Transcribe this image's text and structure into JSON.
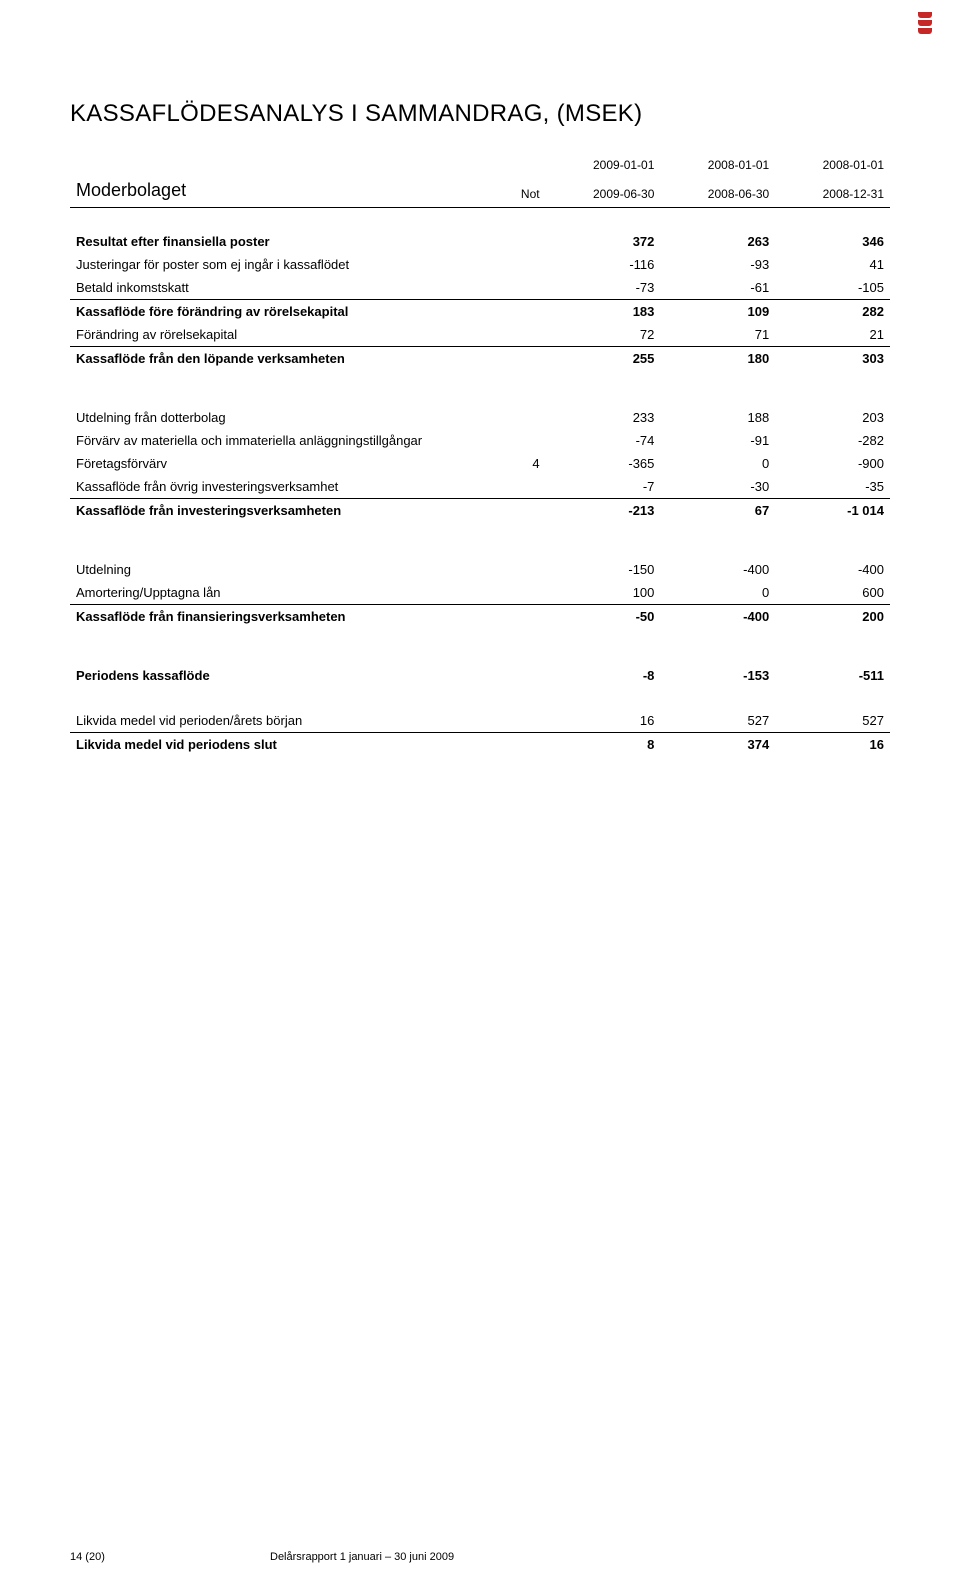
{
  "cornerMark": {
    "color": "#c62828"
  },
  "title": "KASSAFLÖDESANALYS I SAMMANDRAG, (MSEK)",
  "table": {
    "subtitle": "Moderbolaget",
    "notLabel": "Not",
    "periods": [
      {
        "top": "2009-01-01",
        "bottom": "2009-06-30"
      },
      {
        "top": "2008-01-01",
        "bottom": "2008-06-30"
      },
      {
        "top": "2008-01-01",
        "bottom": "2008-12-31"
      }
    ],
    "rows": [
      {
        "type": "spacer"
      },
      {
        "type": "bold",
        "label": "Resultat efter finansiella poster",
        "not": "",
        "v": [
          "372",
          "263",
          "346"
        ]
      },
      {
        "type": "plain",
        "label": "Justeringar för poster som ej ingår i kassaflödet",
        "not": "",
        "v": [
          "-116",
          "-93",
          "41"
        ]
      },
      {
        "type": "rule",
        "label": "Betald inkomstskatt",
        "not": "",
        "v": [
          "-73",
          "-61",
          "-105"
        ]
      },
      {
        "type": "bold",
        "label": "Kassaflöde före förändring av rörelsekapital",
        "not": "",
        "v": [
          "183",
          "109",
          "282"
        ]
      },
      {
        "type": "rule",
        "label": "Förändring av rörelsekapital",
        "not": "",
        "v": [
          "72",
          "71",
          "21"
        ]
      },
      {
        "type": "bold",
        "label": "Kassaflöde från den löpande verksamheten",
        "not": "",
        "v": [
          "255",
          "180",
          "303"
        ]
      },
      {
        "type": "big-spacer"
      },
      {
        "type": "plain",
        "label": "Utdelning från dotterbolag",
        "not": "",
        "v": [
          "233",
          "188",
          "203"
        ]
      },
      {
        "type": "plain",
        "label": "Förvärv av materiella och immateriella anläggningstillgångar",
        "not": "",
        "v": [
          "-74",
          "-91",
          "-282"
        ]
      },
      {
        "type": "plain",
        "label": "Företagsförvärv",
        "not": "4",
        "v": [
          "-365",
          "0",
          "-900"
        ]
      },
      {
        "type": "rule",
        "label": "Kassaflöde från övrig investeringsverksamhet",
        "not": "",
        "v": [
          "-7",
          "-30",
          "-35"
        ]
      },
      {
        "type": "bold",
        "label": "Kassaflöde från investeringsverksamheten",
        "not": "",
        "v": [
          "-213",
          "67",
          "-1 014"
        ]
      },
      {
        "type": "big-spacer"
      },
      {
        "type": "plain",
        "label": "Utdelning",
        "not": "",
        "v": [
          "-150",
          "-400",
          "-400"
        ]
      },
      {
        "type": "rule",
        "label": "Amortering/Upptagna lån",
        "not": "",
        "v": [
          "100",
          "0",
          "600"
        ]
      },
      {
        "type": "bold",
        "label": "Kassaflöde från finansieringsverksamheten",
        "not": "",
        "v": [
          "-50",
          "-400",
          "200"
        ]
      },
      {
        "type": "big-spacer"
      },
      {
        "type": "bold",
        "label": "Periodens kassaflöde",
        "not": "",
        "v": [
          "-8",
          "-153",
          "-511"
        ]
      },
      {
        "type": "spacer"
      },
      {
        "type": "rule",
        "label": "Likvida medel vid perioden/årets början",
        "not": "",
        "v": [
          "16",
          "527",
          "527"
        ]
      },
      {
        "type": "bold",
        "label": "Likvida medel vid periodens slut",
        "not": "",
        "v": [
          "8",
          "374",
          "16"
        ]
      }
    ]
  },
  "footer": {
    "pageNum": "14 (20)",
    "docTitle": "Delårsrapport 1 januari – 30 juni 2009"
  }
}
